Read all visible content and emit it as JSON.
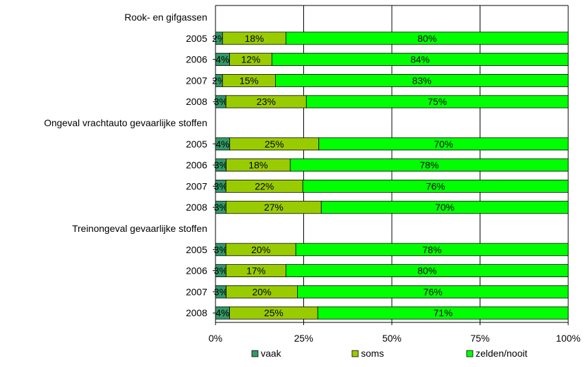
{
  "chart_data": {
    "type": "bar",
    "orientation": "horizontal",
    "stacked": true,
    "stacking": "percent",
    "rows": [
      {
        "kind": "group",
        "label": "Rook- en gifgassen"
      },
      {
        "kind": "bar",
        "label": "2005",
        "values": [
          2,
          18,
          80
        ],
        "labels": [
          "2%",
          "18%",
          "80%"
        ]
      },
      {
        "kind": "bar",
        "label": "2006",
        "values": [
          4,
          12,
          84
        ],
        "labels": [
          "4%",
          "12%",
          "84%"
        ]
      },
      {
        "kind": "bar",
        "label": "2007",
        "values": [
          2,
          15,
          83
        ],
        "labels": [
          "2%",
          "15%",
          "83%"
        ]
      },
      {
        "kind": "bar",
        "label": "2008",
        "values": [
          3,
          23,
          75
        ],
        "labels": [
          "3%",
          "23%",
          "75%"
        ]
      },
      {
        "kind": "group",
        "label": "Ongeval vrachtauto gevaarlijke stoffen"
      },
      {
        "kind": "bar",
        "label": "2005",
        "values": [
          4,
          25,
          70
        ],
        "labels": [
          "4%",
          "25%",
          "70%"
        ]
      },
      {
        "kind": "bar",
        "label": "2006",
        "values": [
          3,
          18,
          78
        ],
        "labels": [
          "3%",
          "18%",
          "78%"
        ]
      },
      {
        "kind": "bar",
        "label": "2007",
        "values": [
          3,
          22,
          76
        ],
        "labels": [
          "3%",
          "22%",
          "76%"
        ]
      },
      {
        "kind": "bar",
        "label": "2008",
        "values": [
          3,
          27,
          70
        ],
        "labels": [
          "3%",
          "27%",
          "70%"
        ]
      },
      {
        "kind": "group",
        "label": "Treinongeval gevaarlijke stoffen"
      },
      {
        "kind": "bar",
        "label": "2005",
        "values": [
          3,
          20,
          78
        ],
        "labels": [
          "3%",
          "20%",
          "78%"
        ]
      },
      {
        "kind": "bar",
        "label": "2006",
        "values": [
          3,
          17,
          80
        ],
        "labels": [
          "3%",
          "17%",
          "80%"
        ]
      },
      {
        "kind": "bar",
        "label": "2007",
        "values": [
          3,
          20,
          76
        ],
        "labels": [
          "3%",
          "20%",
          "76%"
        ]
      },
      {
        "kind": "bar",
        "label": "2008",
        "values": [
          4,
          25,
          71
        ],
        "labels": [
          "4%",
          "25%",
          "71%"
        ]
      }
    ],
    "series": [
      {
        "name": "vaak",
        "color": "#339966"
      },
      {
        "name": "soms",
        "color": "#99CC00"
      },
      {
        "name": "zelden/nooit",
        "color": "#00FF00"
      }
    ],
    "xticks": [
      "0%",
      "25%",
      "50%",
      "75%",
      "100%"
    ],
    "xlim": [
      0,
      100
    ],
    "grid": true,
    "legend_position": "bottom"
  }
}
